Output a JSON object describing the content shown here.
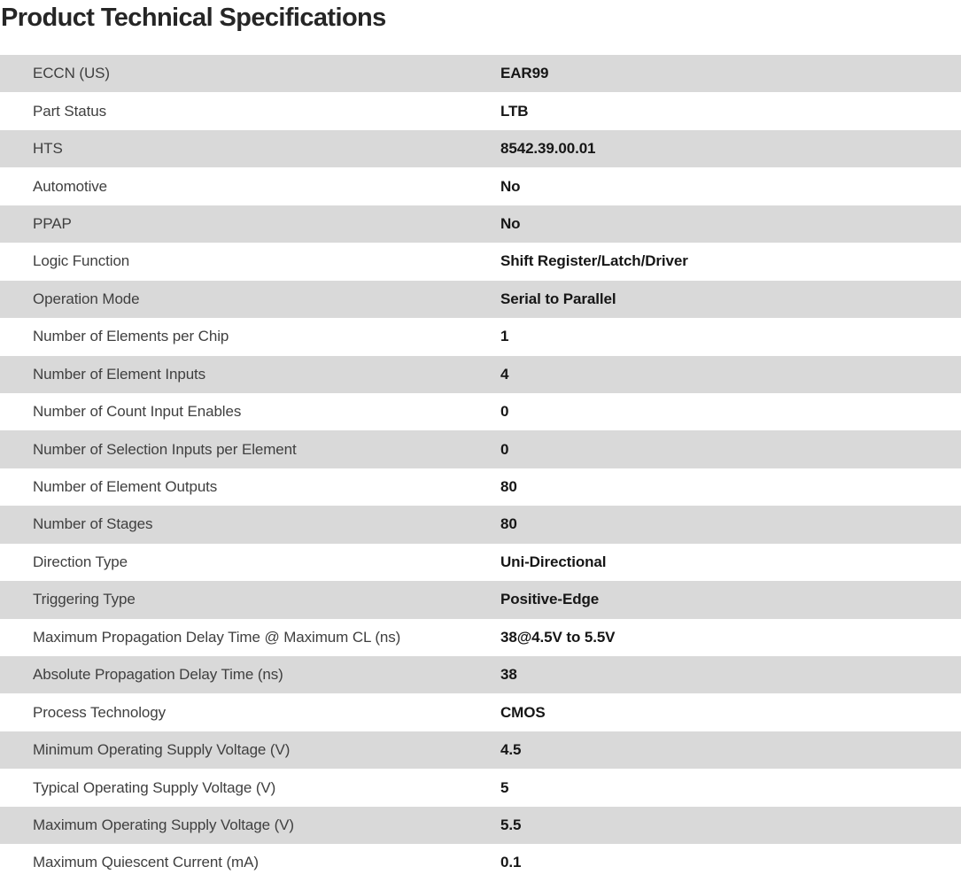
{
  "title": "Product Technical Specifications",
  "colors": {
    "title_color": "#262626",
    "label_color": "#3f3f3f",
    "value_color": "#161616",
    "row_bg": "#ffffff",
    "row_alt_bg": "#d9d9d9"
  },
  "table": {
    "rows": [
      {
        "label": "ECCN (US)",
        "value": "EAR99"
      },
      {
        "label": "Part Status",
        "value": "LTB"
      },
      {
        "label": "HTS",
        "value": "8542.39.00.01"
      },
      {
        "label": "Automotive",
        "value": "No"
      },
      {
        "label": "PPAP",
        "value": "No"
      },
      {
        "label": "Logic Function",
        "value": "Shift Register/Latch/Driver"
      },
      {
        "label": "Operation Mode",
        "value": "Serial to Parallel"
      },
      {
        "label": "Number of Elements per Chip",
        "value": "1"
      },
      {
        "label": "Number of Element Inputs",
        "value": "4"
      },
      {
        "label": "Number of Count Input Enables",
        "value": "0"
      },
      {
        "label": "Number of Selection Inputs per Element",
        "value": "0"
      },
      {
        "label": "Number of Element Outputs",
        "value": "80"
      },
      {
        "label": "Number of Stages",
        "value": "80"
      },
      {
        "label": "Direction Type",
        "value": "Uni-Directional"
      },
      {
        "label": "Triggering Type",
        "value": "Positive-Edge"
      },
      {
        "label": "Maximum Propagation Delay Time @ Maximum CL (ns)",
        "value": "38@4.5V to 5.5V"
      },
      {
        "label": "Absolute Propagation Delay Time (ns)",
        "value": "38"
      },
      {
        "label": "Process Technology",
        "value": "CMOS"
      },
      {
        "label": "Minimum Operating Supply Voltage (V)",
        "value": "4.5"
      },
      {
        "label": "Typical Operating Supply Voltage (V)",
        "value": "5"
      },
      {
        "label": "Maximum Operating Supply Voltage (V)",
        "value": "5.5"
      },
      {
        "label": "Maximum Quiescent Current (mA)",
        "value": "0.1"
      }
    ]
  }
}
